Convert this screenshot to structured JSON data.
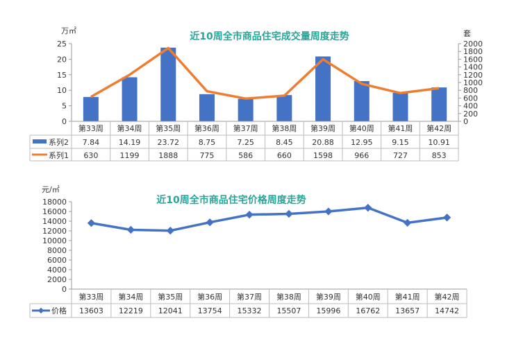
{
  "chart_data": [
    {
      "type": "bar+line",
      "title": "近10周全市商品住宅成交量周度走势",
      "ylabel_left": "万㎡",
      "ylabel_right": "套",
      "categories": [
        "第33周",
        "第34周",
        "第35周",
        "第36周",
        "第37周",
        "第38周",
        "第39周",
        "第40周",
        "第41周",
        "第42周"
      ],
      "ylim_left": [
        0,
        25
      ],
      "yticks_left": [
        0,
        5,
        10,
        15,
        20,
        25
      ],
      "ylim_right": [
        0,
        2000
      ],
      "yticks_right": [
        0,
        200,
        400,
        600,
        800,
        1000,
        1200,
        1400,
        1600,
        1800,
        2000
      ],
      "series": [
        {
          "name": "系列2",
          "kind": "bar",
          "axis": "left",
          "color": "#4472c4",
          "values": [
            7.84,
            14.19,
            23.72,
            8.75,
            7.25,
            8.45,
            20.88,
            12.95,
            9.15,
            10.91
          ]
        },
        {
          "name": "系列1",
          "kind": "line",
          "axis": "right",
          "color": "#ed7d31",
          "values": [
            630,
            1199,
            1888,
            775,
            586,
            660,
            1598,
            966,
            727,
            853
          ]
        }
      ],
      "legend": "data-table"
    },
    {
      "type": "line",
      "title": "近10周全市商品住宅价格周度走势",
      "ylabel": "元/㎡",
      "categories": [
        "第33周",
        "第34周",
        "第35周",
        "第36周",
        "第37周",
        "第38周",
        "第39周",
        "第40周",
        "第41周",
        "第42周"
      ],
      "ylim": [
        0,
        18000
      ],
      "yticks": [
        0,
        2000,
        4000,
        6000,
        8000,
        10000,
        12000,
        14000,
        16000,
        18000
      ],
      "series": [
        {
          "name": "价格",
          "kind": "line",
          "color": "#4472c4",
          "values": [
            13603,
            12219,
            12041,
            13754,
            15332,
            15507,
            15996,
            16762,
            13657,
            14742
          ]
        }
      ],
      "legend": "data-table"
    }
  ]
}
